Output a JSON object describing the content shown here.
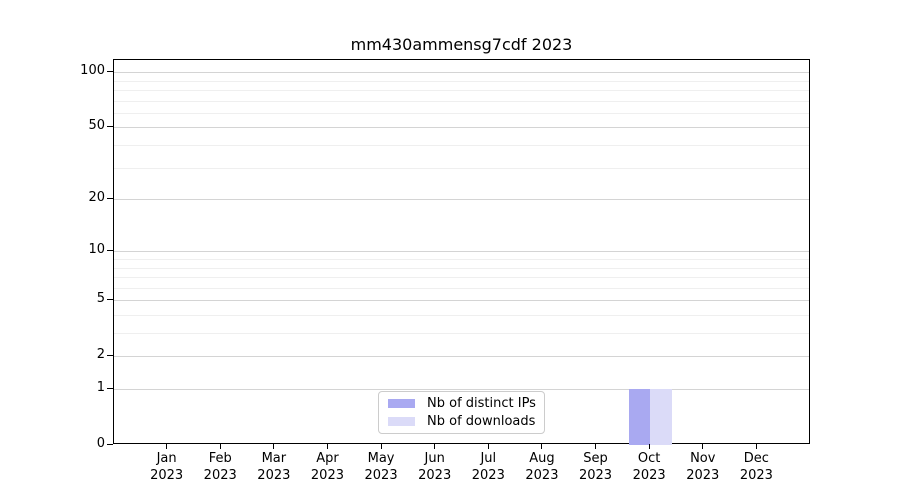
{
  "chart_data": {
    "type": "bar",
    "title": "mm430ammensg7cdf 2023",
    "categories": [
      "Jan",
      "Feb",
      "Mar",
      "Apr",
      "May",
      "Jun",
      "Jul",
      "Aug",
      "Sep",
      "Oct",
      "Nov",
      "Dec"
    ],
    "year_label": "2023",
    "series": [
      {
        "name": "Nb of distinct IPs",
        "color": "#a9a9f1",
        "values": [
          0,
          0,
          0,
          0,
          0,
          0,
          0,
          0,
          0,
          1,
          0,
          0
        ]
      },
      {
        "name": "Nb of downloads",
        "color": "#dbdbf8",
        "values": [
          0,
          0,
          0,
          0,
          0,
          0,
          0,
          0,
          0,
          1,
          0,
          0
        ]
      }
    ],
    "yticks": [
      0,
      1,
      2,
      5,
      10,
      20,
      50,
      100
    ],
    "minor_yticks": [
      3,
      4,
      6,
      7,
      8,
      9,
      30,
      40,
      60,
      70,
      80,
      90
    ],
    "scale": "log1p",
    "ylim": [
      0,
      116.5
    ],
    "xlabel": "",
    "ylabel": "",
    "grid": true,
    "legend_position": "lower center",
    "colors": {
      "spine": "#000000",
      "major_grid": "#d4d4d4",
      "minor_grid": "#efefef",
      "legend_border": "#cccccc",
      "background": "#ffffff"
    }
  }
}
